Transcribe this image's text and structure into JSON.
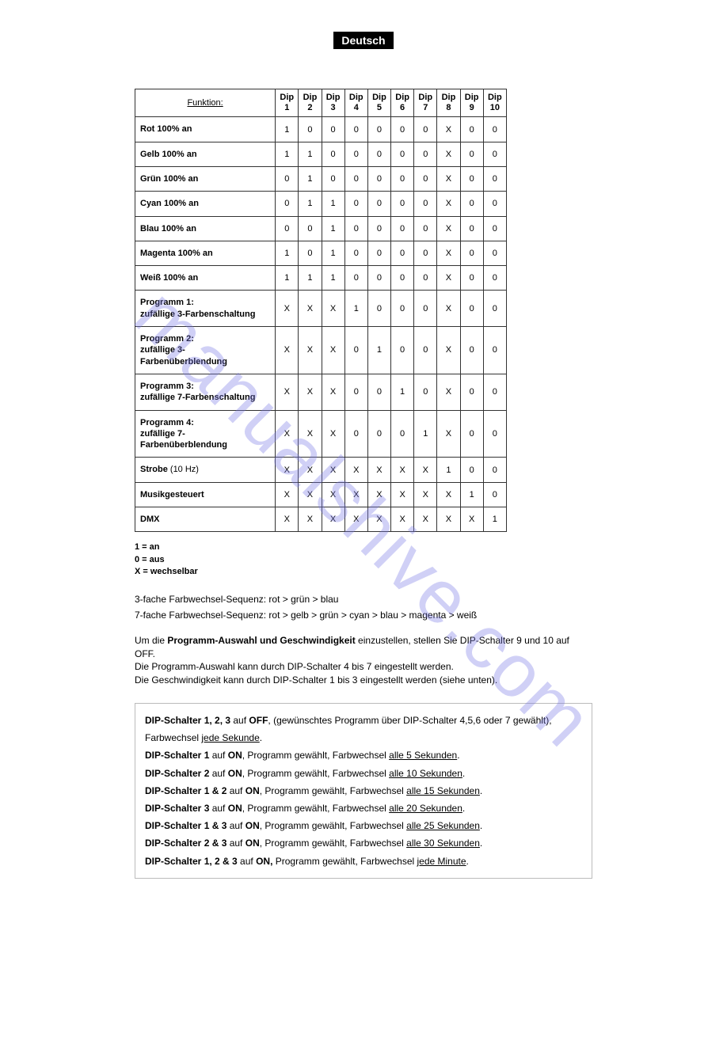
{
  "lang_badge": "Deutsch",
  "watermark": "manualshive.com",
  "table": {
    "func_header": "Funktion:",
    "dip_prefix": "Dip",
    "dip_count": 10,
    "rows": [
      {
        "label": "Rot  100% an",
        "vals": [
          "1",
          "0",
          "0",
          "0",
          "0",
          "0",
          "0",
          "X",
          "0",
          "0"
        ]
      },
      {
        "label": "Gelb 100% an",
        "vals": [
          "1",
          "1",
          "0",
          "0",
          "0",
          "0",
          "0",
          "X",
          "0",
          "0"
        ]
      },
      {
        "label": "Grün  100% an",
        "vals": [
          "0",
          "1",
          "0",
          "0",
          "0",
          "0",
          "0",
          "X",
          "0",
          "0"
        ]
      },
      {
        "label": "Cyan 100% an",
        "vals": [
          "0",
          "1",
          "1",
          "0",
          "0",
          "0",
          "0",
          "X",
          "0",
          "0"
        ]
      },
      {
        "label": "Blau  100% an",
        "vals": [
          "0",
          "0",
          "1",
          "0",
          "0",
          "0",
          "0",
          "X",
          "0",
          "0"
        ]
      },
      {
        "label": "Magenta 100% an",
        "vals": [
          "1",
          "0",
          "1",
          "0",
          "0",
          "0",
          "0",
          "X",
          "0",
          "0"
        ]
      },
      {
        "label": "Weiß 100% an",
        "vals": [
          "1",
          "1",
          "1",
          "0",
          "0",
          "0",
          "0",
          "X",
          "0",
          "0"
        ]
      },
      {
        "label": "Programm 1:",
        "sub": "zufällige 3-Farbenschaltung",
        "vals": [
          "X",
          "X",
          "X",
          "1",
          "0",
          "0",
          "0",
          "X",
          "0",
          "0"
        ]
      },
      {
        "label": "Programm 2:",
        "sub": "zufällige 3-Farbenüberblendung",
        "vals": [
          "X",
          "X",
          "X",
          "0",
          "1",
          "0",
          "0",
          "X",
          "0",
          "0"
        ]
      },
      {
        "label": "Programm 3:",
        "sub": "zufällige 7-Farbenschaltung",
        "vals": [
          "X",
          "X",
          "X",
          "0",
          "0",
          "1",
          "0",
          "X",
          "0",
          "0"
        ]
      },
      {
        "label": "Programm 4:",
        "sub": "zufällige 7-Farbenüberblendung",
        "vals": [
          "X",
          "X",
          "X",
          "0",
          "0",
          "0",
          "1",
          "X",
          "0",
          "0"
        ]
      },
      {
        "label": "Strobe",
        "suffix": " (10 Hz)",
        "vals": [
          "X",
          "X",
          "X",
          "X",
          "X",
          "X",
          "X",
          "1",
          "0",
          "0"
        ]
      },
      {
        "label": "Musikgesteuert",
        "vals": [
          "X",
          "X",
          "X",
          "X",
          "X",
          "X",
          "X",
          "X",
          "1",
          "0"
        ]
      },
      {
        "label": "DMX",
        "vals": [
          "X",
          "X",
          "X",
          "X",
          "X",
          "X",
          "X",
          "X",
          "X",
          "1"
        ]
      }
    ]
  },
  "legend": {
    "l1": "1 = an",
    "l2": "0 = aus",
    "l3": "X = wechselbar"
  },
  "seq3": "3-fache Farbwechsel-Sequenz: rot > grün > blau",
  "seq7": "7-fache Farbwechsel-Sequenz: rot > gelb > grün > cyan > blau > magenta > weiß",
  "para": {
    "p1a": "Um die ",
    "p1b": "Programm-Auswahl und Geschwindigkeit",
    "p1c": " einzustellen, stellen Sie DIP-Schalter 9 und 10 auf OFF.",
    "p2": "Die Programm-Auswahl kann durch DIP-Schalter 4 bis 7 eingestellt werden.",
    "p3": "Die Geschwindigkeit kann durch DIP-Schalter 1 bis 3 eingestellt werden (siehe unten)."
  },
  "timing": [
    {
      "pre": "DIP-Schalter 1, 2, 3",
      "mid": " auf ",
      "state": "OFF",
      "post": ", (gewünschtes Programm über DIP-Schalter 4,5,6 oder 7 gewählt), Farbwechsel ",
      "u": "jede Sekunde",
      "end": "."
    },
    {
      "pre": "DIP-Schalter 1",
      "mid": " auf ",
      "state": "ON",
      "post": ", Programm gewählt, Farbwechsel ",
      "u": "alle 5 Sekunden",
      "end": "."
    },
    {
      "pre": "DIP-Schalter 2",
      "mid": " auf ",
      "state": "ON",
      "post": ", Programm gewählt, Farbwechsel ",
      "u": "alle 10 Sekunden",
      "end": "."
    },
    {
      "pre": "DIP-Schalter 1 & 2",
      "mid": " auf ",
      "state": "ON",
      "post": ", Programm gewählt, Farbwechsel ",
      "u": "alle 15 Sekunden",
      "end": "."
    },
    {
      "pre": "DIP-Schalter 3",
      "mid": " auf ",
      "state": "ON",
      "post": ", Programm gewählt, Farbwechsel ",
      "u": "alle 20 Sekunden",
      "end": "."
    },
    {
      "pre": "DIP-Schalter 1 & 3",
      "mid": " auf ",
      "state": "ON",
      "post": ", Programm gewählt, Farbwechsel ",
      "u": "alle 25 Sekunden",
      "end": "."
    },
    {
      "pre": "DIP-Schalter 2 & 3",
      "mid": " auf ",
      "state": "ON",
      "post": ", Programm gewählt, Farbwechsel ",
      "u": "alle 30 Sekunden",
      "end": "."
    },
    {
      "pre": "DIP-Schalter 1, 2 & 3",
      "mid": " auf ",
      "state": "ON,",
      "post": " Programm gewählt, Farbwechsel ",
      "u": "jede Minute",
      "end": "."
    }
  ]
}
